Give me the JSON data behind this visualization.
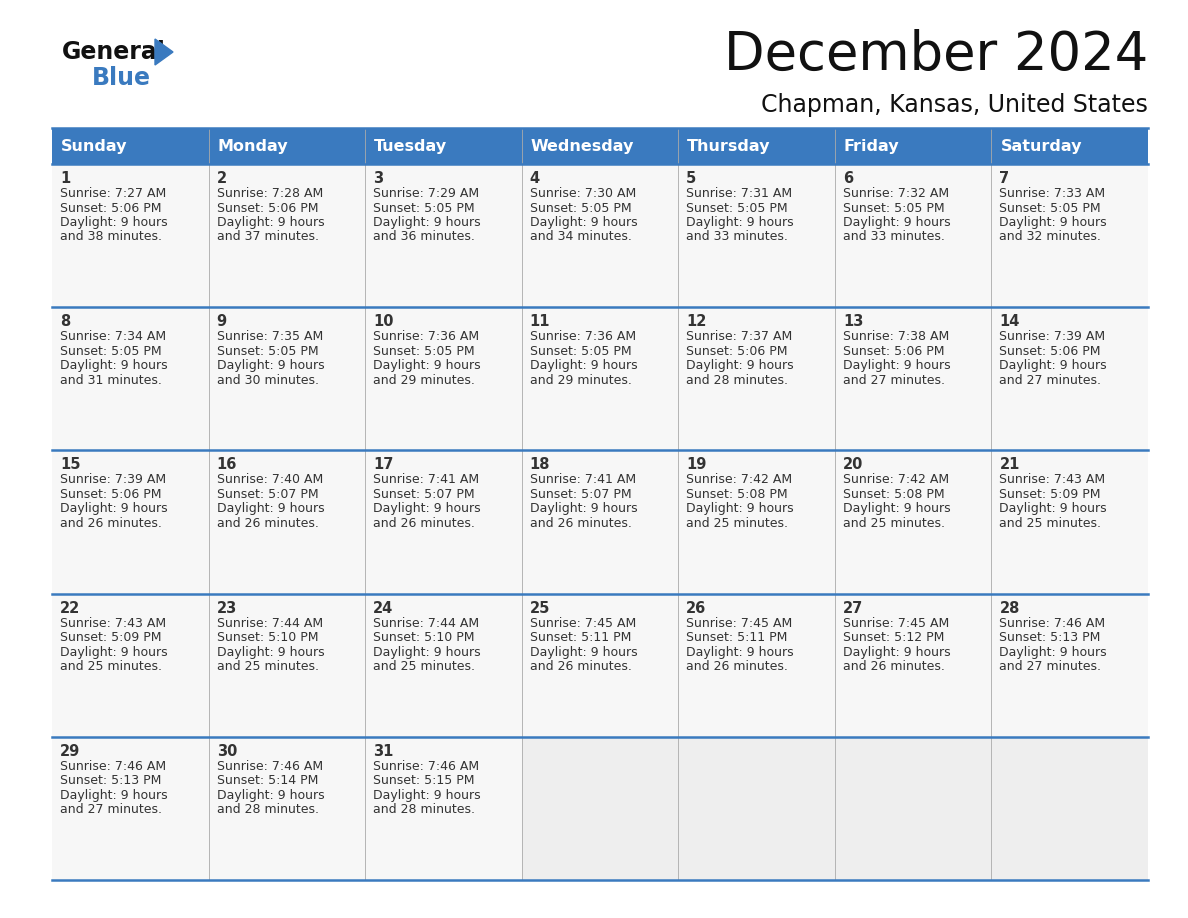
{
  "title": "December 2024",
  "subtitle": "Chapman, Kansas, United States",
  "header_bg_color": "#3a7abf",
  "header_text_color": "#ffffff",
  "cell_bg_odd": "#f5f7fa",
  "cell_bg_even": "#ffffff",
  "border_color": "#3a7abf",
  "text_color": "#333333",
  "day_names": [
    "Sunday",
    "Monday",
    "Tuesday",
    "Wednesday",
    "Thursday",
    "Friday",
    "Saturday"
  ],
  "weeks": [
    [
      {
        "day": "1",
        "sunrise": "7:27 AM",
        "sunset": "5:06 PM",
        "daylight_h": "9 hours",
        "daylight_m": "and 38 minutes."
      },
      {
        "day": "2",
        "sunrise": "7:28 AM",
        "sunset": "5:06 PM",
        "daylight_h": "9 hours",
        "daylight_m": "and 37 minutes."
      },
      {
        "day": "3",
        "sunrise": "7:29 AM",
        "sunset": "5:05 PM",
        "daylight_h": "9 hours",
        "daylight_m": "and 36 minutes."
      },
      {
        "day": "4",
        "sunrise": "7:30 AM",
        "sunset": "5:05 PM",
        "daylight_h": "9 hours",
        "daylight_m": "and 34 minutes."
      },
      {
        "day": "5",
        "sunrise": "7:31 AM",
        "sunset": "5:05 PM",
        "daylight_h": "9 hours",
        "daylight_m": "and 33 minutes."
      },
      {
        "day": "6",
        "sunrise": "7:32 AM",
        "sunset": "5:05 PM",
        "daylight_h": "9 hours",
        "daylight_m": "and 33 minutes."
      },
      {
        "day": "7",
        "sunrise": "7:33 AM",
        "sunset": "5:05 PM",
        "daylight_h": "9 hours",
        "daylight_m": "and 32 minutes."
      }
    ],
    [
      {
        "day": "8",
        "sunrise": "7:34 AM",
        "sunset": "5:05 PM",
        "daylight_h": "9 hours",
        "daylight_m": "and 31 minutes."
      },
      {
        "day": "9",
        "sunrise": "7:35 AM",
        "sunset": "5:05 PM",
        "daylight_h": "9 hours",
        "daylight_m": "and 30 minutes."
      },
      {
        "day": "10",
        "sunrise": "7:36 AM",
        "sunset": "5:05 PM",
        "daylight_h": "9 hours",
        "daylight_m": "and 29 minutes."
      },
      {
        "day": "11",
        "sunrise": "7:36 AM",
        "sunset": "5:05 PM",
        "daylight_h": "9 hours",
        "daylight_m": "and 29 minutes."
      },
      {
        "day": "12",
        "sunrise": "7:37 AM",
        "sunset": "5:06 PM",
        "daylight_h": "9 hours",
        "daylight_m": "and 28 minutes."
      },
      {
        "day": "13",
        "sunrise": "7:38 AM",
        "sunset": "5:06 PM",
        "daylight_h": "9 hours",
        "daylight_m": "and 27 minutes."
      },
      {
        "day": "14",
        "sunrise": "7:39 AM",
        "sunset": "5:06 PM",
        "daylight_h": "9 hours",
        "daylight_m": "and 27 minutes."
      }
    ],
    [
      {
        "day": "15",
        "sunrise": "7:39 AM",
        "sunset": "5:06 PM",
        "daylight_h": "9 hours",
        "daylight_m": "and 26 minutes."
      },
      {
        "day": "16",
        "sunrise": "7:40 AM",
        "sunset": "5:07 PM",
        "daylight_h": "9 hours",
        "daylight_m": "and 26 minutes."
      },
      {
        "day": "17",
        "sunrise": "7:41 AM",
        "sunset": "5:07 PM",
        "daylight_h": "9 hours",
        "daylight_m": "and 26 minutes."
      },
      {
        "day": "18",
        "sunrise": "7:41 AM",
        "sunset": "5:07 PM",
        "daylight_h": "9 hours",
        "daylight_m": "and 26 minutes."
      },
      {
        "day": "19",
        "sunrise": "7:42 AM",
        "sunset": "5:08 PM",
        "daylight_h": "9 hours",
        "daylight_m": "and 25 minutes."
      },
      {
        "day": "20",
        "sunrise": "7:42 AM",
        "sunset": "5:08 PM",
        "daylight_h": "9 hours",
        "daylight_m": "and 25 minutes."
      },
      {
        "day": "21",
        "sunrise": "7:43 AM",
        "sunset": "5:09 PM",
        "daylight_h": "9 hours",
        "daylight_m": "and 25 minutes."
      }
    ],
    [
      {
        "day": "22",
        "sunrise": "7:43 AM",
        "sunset": "5:09 PM",
        "daylight_h": "9 hours",
        "daylight_m": "and 25 minutes."
      },
      {
        "day": "23",
        "sunrise": "7:44 AM",
        "sunset": "5:10 PM",
        "daylight_h": "9 hours",
        "daylight_m": "and 25 minutes."
      },
      {
        "day": "24",
        "sunrise": "7:44 AM",
        "sunset": "5:10 PM",
        "daylight_h": "9 hours",
        "daylight_m": "and 25 minutes."
      },
      {
        "day": "25",
        "sunrise": "7:45 AM",
        "sunset": "5:11 PM",
        "daylight_h": "9 hours",
        "daylight_m": "and 26 minutes."
      },
      {
        "day": "26",
        "sunrise": "7:45 AM",
        "sunset": "5:11 PM",
        "daylight_h": "9 hours",
        "daylight_m": "and 26 minutes."
      },
      {
        "day": "27",
        "sunrise": "7:45 AM",
        "sunset": "5:12 PM",
        "daylight_h": "9 hours",
        "daylight_m": "and 26 minutes."
      },
      {
        "day": "28",
        "sunrise": "7:46 AM",
        "sunset": "5:13 PM",
        "daylight_h": "9 hours",
        "daylight_m": "and 27 minutes."
      }
    ],
    [
      {
        "day": "29",
        "sunrise": "7:46 AM",
        "sunset": "5:13 PM",
        "daylight_h": "9 hours",
        "daylight_m": "and 27 minutes."
      },
      {
        "day": "30",
        "sunrise": "7:46 AM",
        "sunset": "5:14 PM",
        "daylight_h": "9 hours",
        "daylight_m": "and 28 minutes."
      },
      {
        "day": "31",
        "sunrise": "7:46 AM",
        "sunset": "5:15 PM",
        "daylight_h": "9 hours",
        "daylight_m": "and 28 minutes."
      },
      null,
      null,
      null,
      null
    ]
  ]
}
